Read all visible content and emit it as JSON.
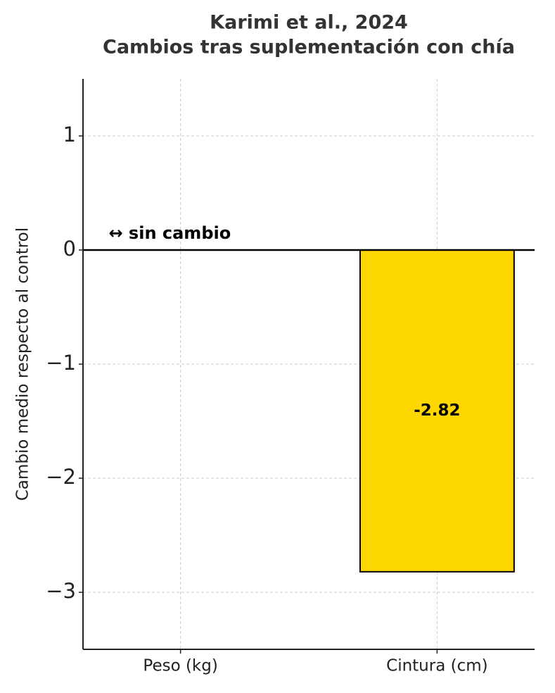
{
  "chart_data": {
    "type": "bar",
    "title": [
      "Karimi et al., 2024",
      "Cambios tras suplementación con chía"
    ],
    "y_label": "Cambio medio respecto al control",
    "categories": [
      "Peso (kg)",
      "Cintura (cm)"
    ],
    "values": [
      0,
      -2.82
    ],
    "color": "#ffd700",
    "edge_color": "#000000",
    "annotation": "↔ sin cambio",
    "reference_line": 0,
    "ylim": [
      -3.5,
      1.5
    ],
    "yticks": [
      {
        "value": -3,
        "label": "−3"
      },
      {
        "value": -2,
        "label": "−2"
      },
      {
        "value": -1,
        "label": "−1"
      },
      0,
      1
    ],
    "grid": true
  }
}
